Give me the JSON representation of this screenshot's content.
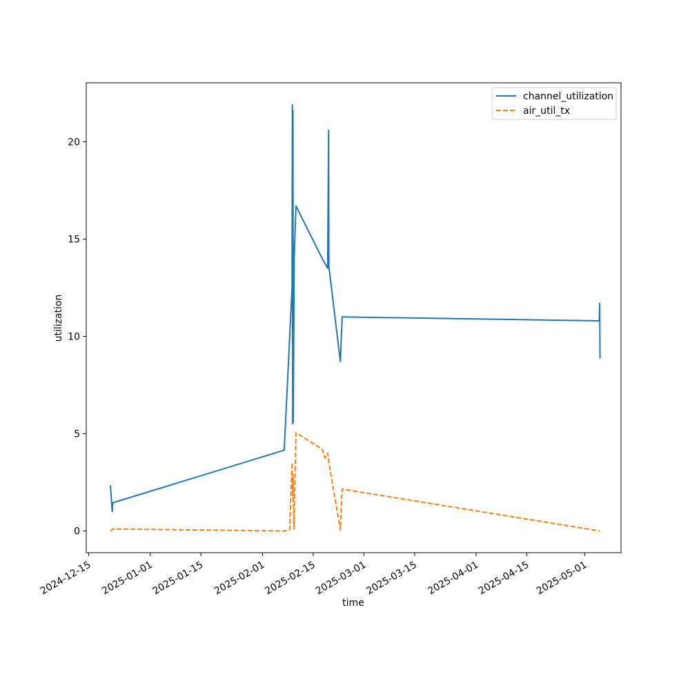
{
  "chart_data": {
    "type": "line",
    "title": "",
    "xlabel": "time",
    "ylabel": "utilization",
    "x_ticks": [
      "2024-12-15",
      "2025-01-01",
      "2025-01-15",
      "2025-02-01",
      "2025-02-15",
      "2025-03-01",
      "2025-03-15",
      "2025-04-01",
      "2025-04-15",
      "2025-05-01"
    ],
    "y_ticks": [
      0,
      5,
      10,
      15,
      20
    ],
    "xlim": [
      "2024-12-15",
      "2025-05-06"
    ],
    "ylim": [
      -1.1,
      22.6
    ],
    "grid": false,
    "legend_position": "top-right",
    "series": [
      {
        "name": "channel_utilization",
        "color": "#1f77b4",
        "dash": "solid",
        "points": [
          [
            "2024-12-21T00:00",
            2.35
          ],
          [
            "2024-12-21T12:00",
            1.0
          ],
          [
            "2024-12-21T16:00",
            1.45
          ],
          [
            "2025-02-07T00:00",
            4.15
          ],
          [
            "2025-02-09T04:00",
            12.5
          ],
          [
            "2025-02-09T06:00",
            21.9
          ],
          [
            "2025-02-09T08:00",
            5.5
          ],
          [
            "2025-02-09T10:00",
            21.6
          ],
          [
            "2025-02-09T12:00",
            5.6
          ],
          [
            "2025-02-09T18:00",
            14.0
          ],
          [
            "2025-02-10T06:00",
            16.7
          ],
          [
            "2025-02-17T12:00",
            14.0
          ],
          [
            "2025-02-19T00:00",
            13.5
          ],
          [
            "2025-02-19T06:00",
            20.6
          ],
          [
            "2025-02-19T08:00",
            13.6
          ],
          [
            "2025-02-22T12:00",
            8.7
          ],
          [
            "2025-02-23T00:00",
            11.0
          ],
          [
            "2025-05-05T00:00",
            10.8
          ],
          [
            "2025-05-05T03:00",
            11.7
          ],
          [
            "2025-05-05T05:00",
            8.85
          ]
        ]
      },
      {
        "name": "air_util_tx",
        "color": "#ff7f0e",
        "dash": "dashed",
        "points": [
          [
            "2024-12-21T00:00",
            0.0
          ],
          [
            "2024-12-21T16:00",
            0.1
          ],
          [
            "2025-02-07T00:00",
            0.0
          ],
          [
            "2025-02-08T12:00",
            0.05
          ],
          [
            "2025-02-09T04:00",
            3.5
          ],
          [
            "2025-02-09T08:00",
            1.8
          ],
          [
            "2025-02-09T10:00",
            2.9
          ],
          [
            "2025-02-09T12:00",
            1.8
          ],
          [
            "2025-02-09T16:00",
            0.1
          ],
          [
            "2025-02-10T06:00",
            5.05
          ],
          [
            "2025-02-17T12:00",
            4.2
          ],
          [
            "2025-02-18T06:00",
            3.75
          ],
          [
            "2025-02-19T00:00",
            4.0
          ],
          [
            "2025-02-19T08:00",
            3.5
          ],
          [
            "2025-02-22T12:00",
            0.05
          ],
          [
            "2025-02-23T00:00",
            2.15
          ],
          [
            "2025-05-05T04:00",
            0.0
          ]
        ]
      }
    ]
  }
}
